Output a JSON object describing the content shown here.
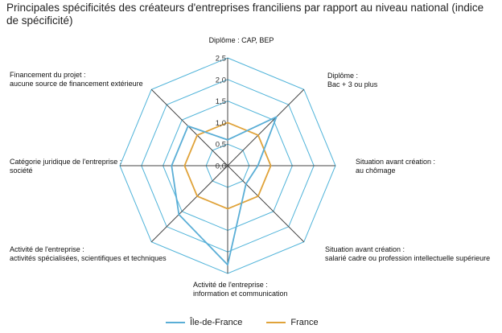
{
  "title": "Principales spécificités des créateurs d'entreprises franciliens par rapport au niveau national (indice de spécificité)",
  "colors": {
    "grid": "#4fb3d9",
    "spoke": "#444444",
    "ile_de_france": "#5aaed6",
    "france": "#e0a33a"
  },
  "chart_data": {
    "type": "radar",
    "axes": [
      [
        "Diplôme : CAP, BEP"
      ],
      [
        "Diplôme :",
        "Bac + 3 ou plus"
      ],
      [
        "Situation avant création :",
        "au chômage"
      ],
      [
        "Situation avant création :",
        "salarié cadre ou profession intellectuelle supérieure"
      ],
      [
        "Activité de l'entreprise :",
        "information et communication"
      ],
      [
        "Activité de l'entreprise :",
        "activités spécialisées, scientifiques et techniques"
      ],
      [
        "Catégorie juridique de l'entreprise :",
        "société"
      ],
      [
        "Financement du projet :",
        "aucune source de financement extérieure"
      ]
    ],
    "ticks": [
      "0,0",
      "0,5",
      "1,0",
      "1,5",
      "2,0",
      "2,5"
    ],
    "tick_values": [
      0,
      0.5,
      1.0,
      1.5,
      2.0,
      2.5
    ],
    "rmax": 2.5,
    "series": [
      {
        "name": "Île-de-France",
        "values": [
          0.6,
          1.6,
          0.7,
          0.6,
          2.3,
          1.6,
          1.3,
          1.3
        ]
      },
      {
        "name": "France",
        "values": [
          1.0,
          1.0,
          1.0,
          1.0,
          1.0,
          1.0,
          1.0,
          1.0
        ]
      }
    ]
  },
  "legend": [
    {
      "label": "Île-de-France",
      "color_key": "ile_de_france"
    },
    {
      "label": "France",
      "color_key": "france"
    }
  ]
}
